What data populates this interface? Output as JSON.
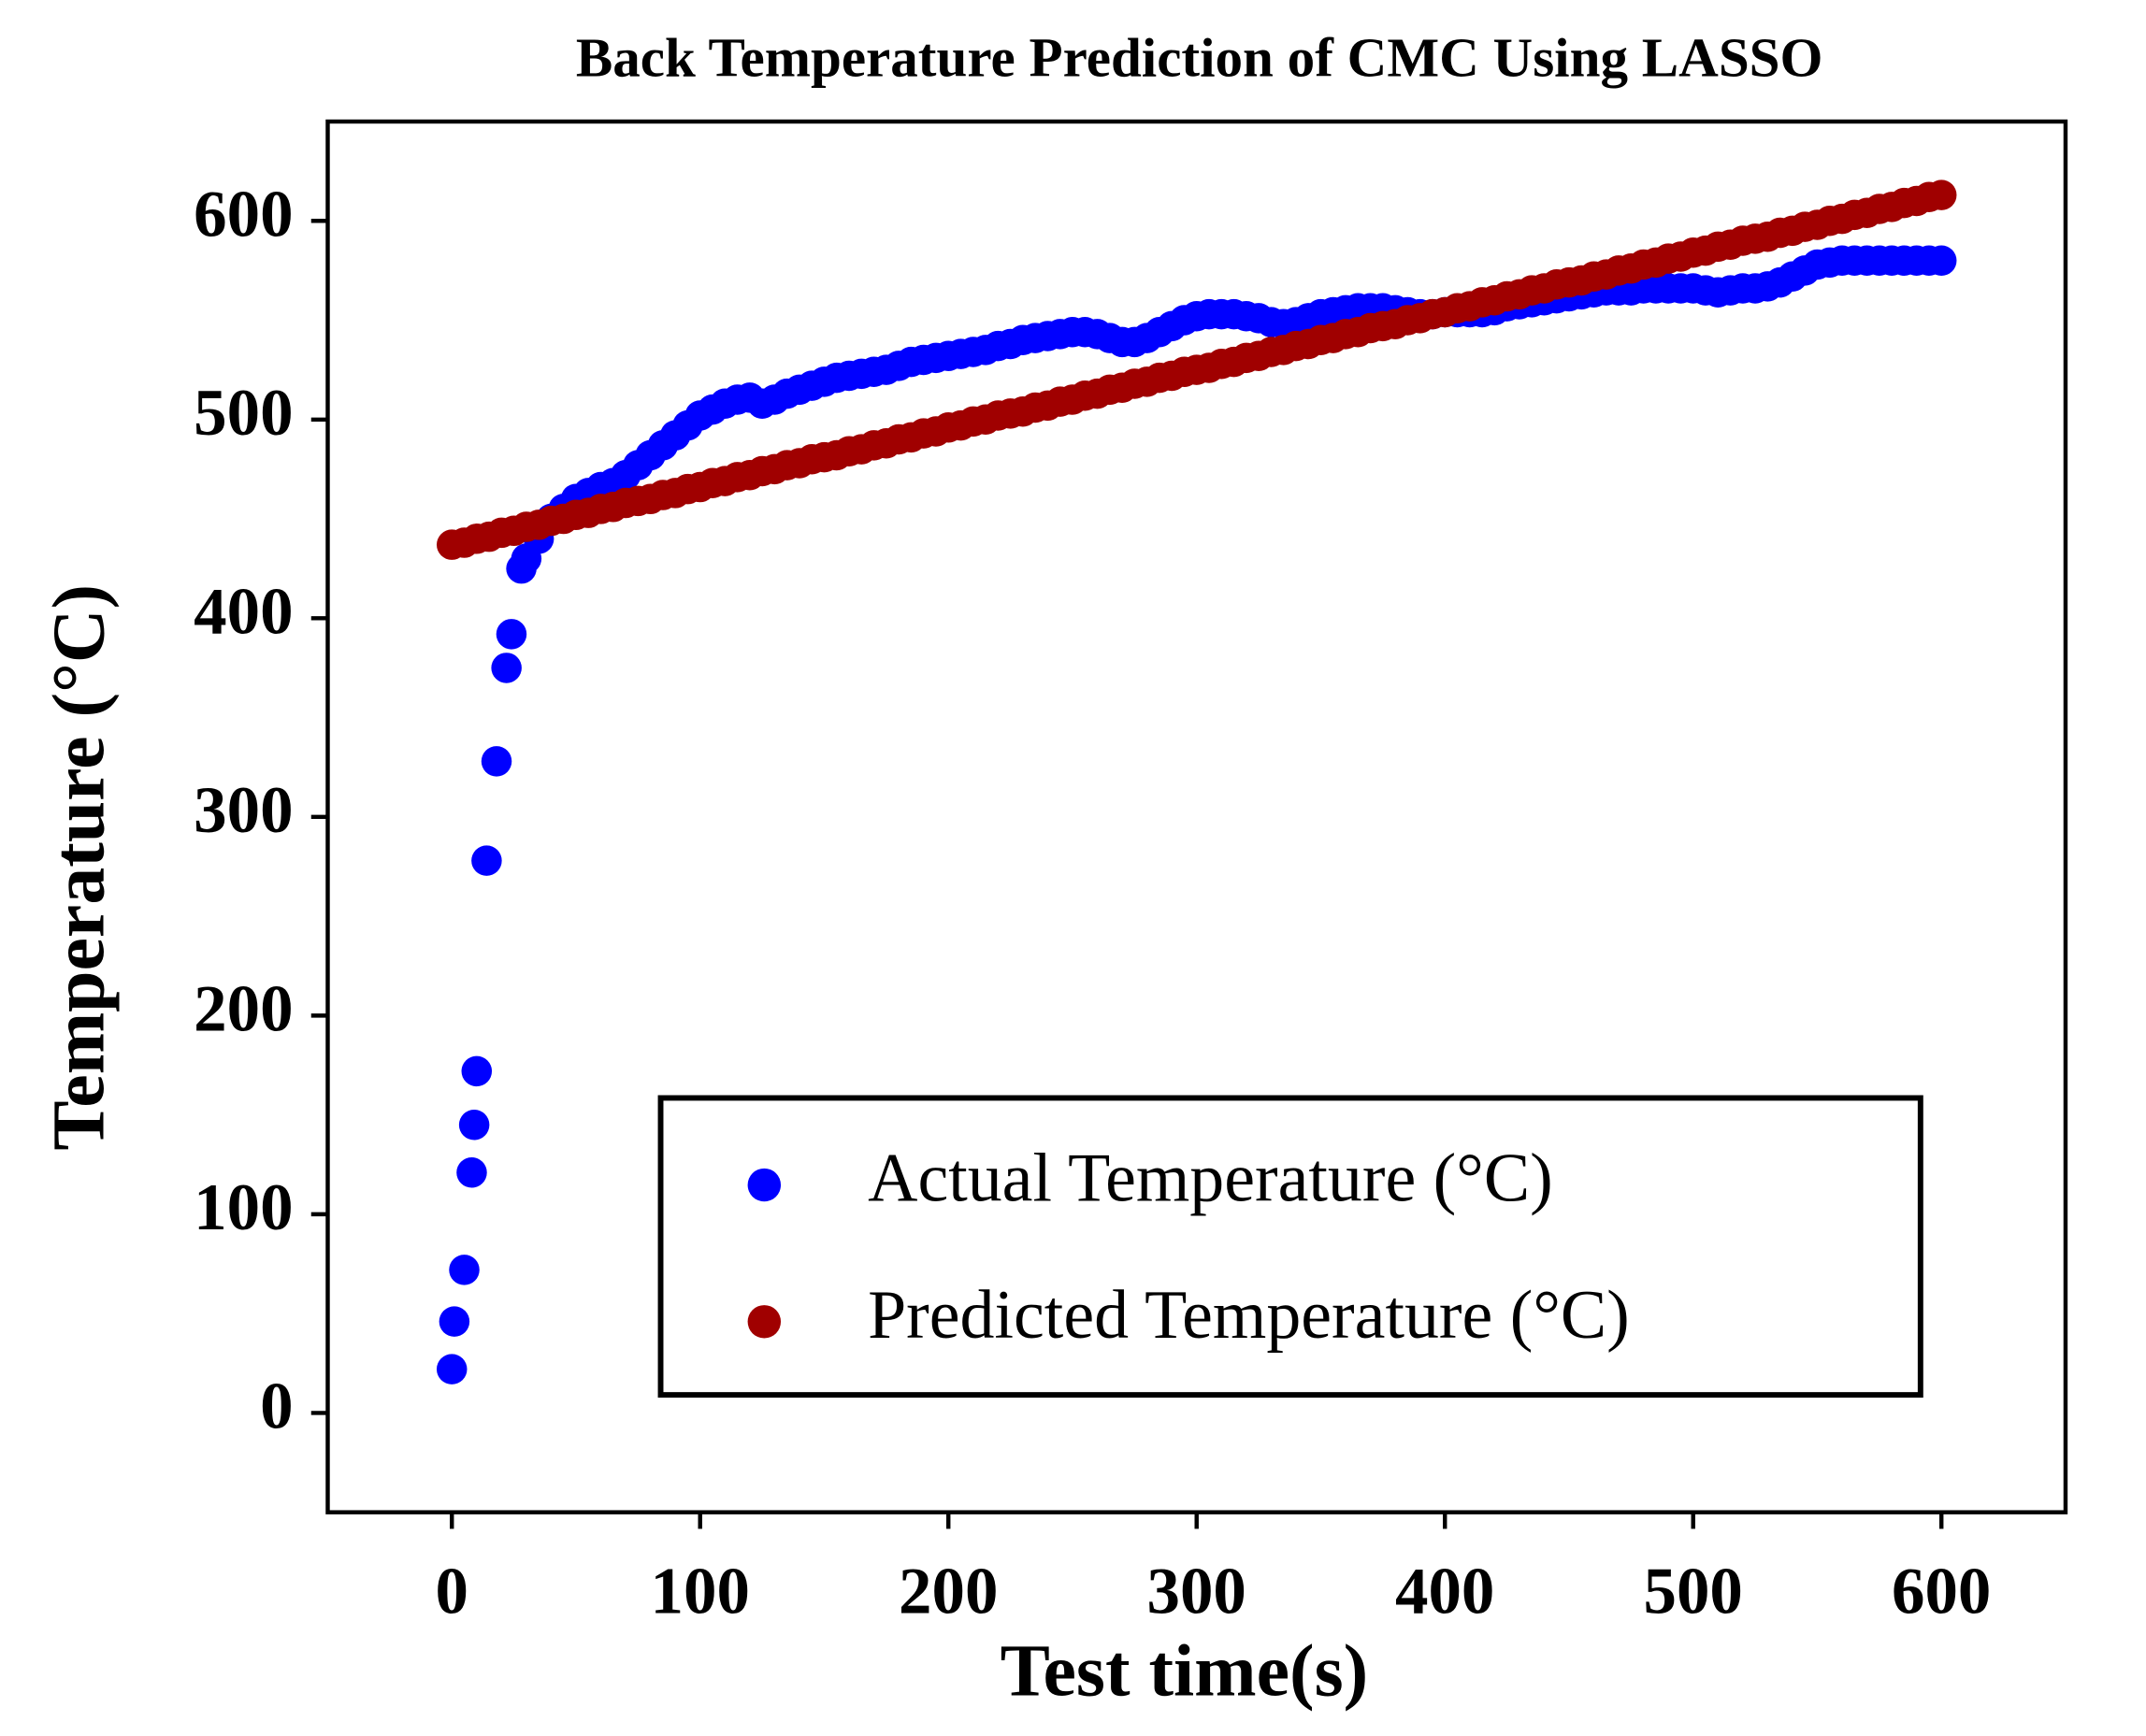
{
  "chart_data": {
    "type": "scatter",
    "title": "Back Temperature Prediction of CMC Using LASSO",
    "x_label": "Test time(s)",
    "y_label": "Temperature (°C)",
    "xlim": [
      -50,
      650
    ],
    "ylim": [
      -50,
      650
    ],
    "xticks": [
      0,
      100,
      200,
      300,
      400,
      500,
      600
    ],
    "yticks": [
      0,
      100,
      200,
      300,
      400,
      500,
      600
    ],
    "legend": "lower right",
    "series": [
      {
        "name": "Actual Temperature (°C)",
        "color": "#0000ff",
        "x": [
          0,
          1,
          5,
          8,
          9,
          10,
          14,
          18,
          22,
          24,
          28,
          30,
          35,
          40,
          45,
          50,
          55,
          60,
          65,
          70,
          75,
          80,
          85,
          90,
          95,
          100,
          105,
          110,
          115,
          120,
          125,
          130,
          135,
          140,
          145,
          150,
          155,
          160,
          165,
          170,
          175,
          180,
          185,
          190,
          195,
          200,
          205,
          210,
          215,
          220,
          225,
          230,
          235,
          240,
          245,
          250,
          255,
          260,
          265,
          270,
          275,
          280,
          285,
          290,
          295,
          300,
          305,
          310,
          315,
          320,
          325,
          330,
          335,
          340,
          345,
          350,
          355,
          360,
          365,
          370,
          375,
          380,
          385,
          390,
          395,
          400,
          405,
          410,
          415,
          420,
          425,
          430,
          435,
          440,
          445,
          450,
          455,
          460,
          465,
          470,
          475,
          480,
          485,
          490,
          495,
          500,
          505,
          510,
          515,
          520,
          525,
          530,
          535,
          540,
          545,
          550,
          555,
          560,
          565,
          570,
          575,
          580,
          585,
          590,
          595,
          600
        ],
        "values": [
          22,
          46,
          72,
          121,
          145,
          172,
          278,
          328,
          375,
          392,
          425,
          430,
          440,
          450,
          455,
          460,
          463,
          466,
          468,
          472,
          477,
          482,
          487,
          492,
          497,
          502,
          505,
          508,
          510,
          511,
          508,
          510,
          513,
          515,
          517,
          519,
          521,
          522,
          523,
          524,
          525,
          527,
          529,
          530,
          531,
          532,
          533,
          534,
          535,
          537,
          538,
          540,
          541,
          542,
          543,
          544,
          544,
          543,
          541,
          539,
          539,
          541,
          544,
          547,
          550,
          552,
          553,
          553,
          553,
          552,
          551,
          549,
          548,
          549,
          551,
          553,
          554,
          555,
          556,
          556,
          556,
          555,
          554,
          553,
          553,
          554,
          554,
          554,
          554,
          555,
          557,
          558,
          559,
          560,
          561,
          562,
          563,
          564,
          565,
          565,
          565,
          566,
          566,
          566,
          566,
          566,
          565,
          564,
          565,
          566,
          566,
          567,
          569,
          572,
          575,
          578,
          579,
          580,
          580,
          580,
          580,
          580,
          580,
          580,
          580,
          580
        ]
      },
      {
        "name": "Predicted Temperature (°C)",
        "color": "#a00000",
        "x": [
          0,
          5,
          10,
          15,
          20,
          25,
          30,
          35,
          40,
          45,
          50,
          55,
          60,
          65,
          70,
          75,
          80,
          85,
          90,
          95,
          100,
          105,
          110,
          115,
          120,
          125,
          130,
          135,
          140,
          145,
          150,
          155,
          160,
          165,
          170,
          175,
          180,
          185,
          190,
          195,
          200,
          205,
          210,
          215,
          220,
          225,
          230,
          235,
          240,
          245,
          250,
          255,
          260,
          265,
          270,
          275,
          280,
          285,
          290,
          295,
          300,
          305,
          310,
          315,
          320,
          325,
          330,
          335,
          340,
          345,
          350,
          355,
          360,
          365,
          370,
          375,
          380,
          385,
          390,
          395,
          400,
          405,
          410,
          415,
          420,
          425,
          430,
          435,
          440,
          445,
          450,
          455,
          460,
          465,
          470,
          475,
          480,
          485,
          490,
          495,
          500,
          505,
          510,
          515,
          520,
          525,
          530,
          535,
          540,
          545,
          550,
          555,
          560,
          565,
          570,
          575,
          580,
          585,
          590,
          595,
          600
        ],
        "values": [
          437,
          438,
          440,
          441,
          443,
          444,
          446,
          447,
          449,
          450,
          452,
          453,
          455,
          456,
          458,
          459,
          460,
          462,
          463,
          465,
          466,
          468,
          469,
          471,
          472,
          474,
          475,
          477,
          478,
          480,
          481,
          482,
          484,
          485,
          487,
          488,
          490,
          491,
          493,
          494,
          496,
          497,
          499,
          500,
          502,
          503,
          504,
          506,
          507,
          509,
          510,
          512,
          513,
          515,
          516,
          518,
          519,
          521,
          522,
          524,
          525,
          526,
          528,
          529,
          531,
          532,
          534,
          535,
          537,
          538,
          540,
          541,
          543,
          544,
          546,
          547,
          548,
          550,
          551,
          553,
          554,
          556,
          557,
          559,
          560,
          562,
          563,
          565,
          566,
          568,
          569,
          570,
          572,
          573,
          575,
          576,
          578,
          579,
          581,
          582,
          584,
          585,
          587,
          588,
          590,
          591,
          592,
          594,
          595,
          597,
          598,
          600,
          601,
          603,
          604,
          606,
          607,
          609,
          610,
          612,
          613
        ]
      }
    ]
  }
}
